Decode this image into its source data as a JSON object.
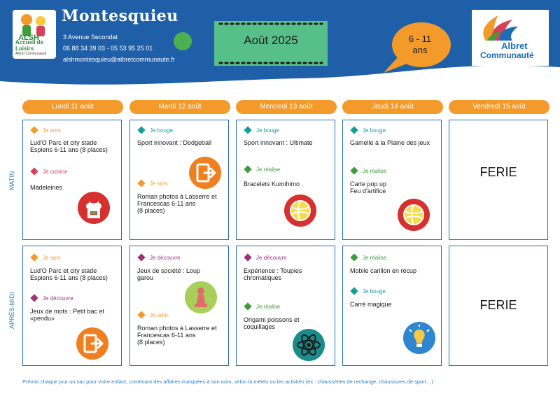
{
  "header": {
    "title": "Montesquieu",
    "address": "3 Avenue Secondat",
    "phones": "06 88 34 39 03  - 05 53 95 25 01",
    "email": "alshmontesquieu@albretcommunaute.fr",
    "month": "Août 2025",
    "age_top": "6 - 11",
    "age_bottom": "ans",
    "alsh_logo": {
      "t1": "Accueil de Loisirs",
      "t2": "Albret Communauté"
    },
    "albret_logo": {
      "l1": "Albret",
      "l2": "Communauté"
    }
  },
  "rows": {
    "matin": "MATIN",
    "apres_midi": "APRÈS-MIDI"
  },
  "days": [
    "Lundi 11 août",
    "Mardi 12 août",
    "Mercredi 13 août",
    "Jeudi 14 août",
    "Vendredi 15 août"
  ],
  "matin": [
    {
      "entries": [
        {
          "cat": "Je sors",
          "color": "#f39a2b",
          "text": [
            "Lud'O Parc et city stade",
            "Espiens 6-11 ans (8 places)"
          ]
        },
        {
          "cat": "Je cuisine",
          "color": "#d6405a",
          "text": [
            "Madeleines"
          ]
        }
      ],
      "icon": "apron-icon"
    },
    {
      "entries": [
        {
          "cat": "Je bouge",
          "color": "#179c9c",
          "text": [
            "Sport innovant : Dodgeball"
          ]
        },
        {
          "cat": "Je sors",
          "color": "#f39a2b",
          "text": [
            "Roman photos à Lasserre et",
            "Francescas 6-11 ans",
            "(8 places)"
          ]
        }
      ],
      "icon": "exit-door-icon"
    },
    {
      "entries": [
        {
          "cat": "Je bouge",
          "color": "#179c9c",
          "text": [
            "Sport innovant : Ultimate"
          ]
        },
        {
          "cat": "Je réalise",
          "color": "#3f9c3a",
          "text": [
            "Bracelets Kumihimo"
          ]
        }
      ],
      "icon": "ball-icon"
    },
    {
      "entries": [
        {
          "cat": "Je bouge",
          "color": "#179c9c",
          "text": [
            "Gamelle à la Plaine des jeux"
          ]
        },
        {
          "cat": "Je réalise",
          "color": "#3f9c3a",
          "text": [
            "Carte pop up",
            "Feu d'artifice"
          ]
        }
      ],
      "icon": "ball-icon"
    },
    {
      "ferie": "FERIE"
    }
  ],
  "apres_midi": [
    {
      "entries": [
        {
          "cat": "Je sors",
          "color": "#f39a2b",
          "text": [
            "Lud'O Parc et city stade",
            "Espiens 6-11 ans (8 places)"
          ]
        },
        {
          "cat": "Je découvre",
          "color": "#a0307a",
          "text": [
            "Jeux de mots : Petit bac et",
            "«pendu»"
          ]
        }
      ],
      "icon": "exit-door-icon"
    },
    {
      "entries": [
        {
          "cat": "Je découvre",
          "color": "#a0307a",
          "text": [
            "Jeux de société : Loup",
            "garou"
          ]
        },
        {
          "cat": "Je sors",
          "color": "#f39a2b",
          "text": [
            "Roman photos à Lasserre et",
            "Francescas 6-11 ans",
            "(8 places)"
          ]
        }
      ],
      "icon": "chess-pawn-icon"
    },
    {
      "entries": [
        {
          "cat": "Je découvre",
          "color": "#a0307a",
          "text": [
            "Expérience : Toupies",
            "chromatiques"
          ]
        },
        {
          "cat": "Je réalise",
          "color": "#3f9c3a",
          "text": [
            "Origami poissons et",
            "coquillages"
          ]
        }
      ],
      "icon": "atom-icon"
    },
    {
      "entries": [
        {
          "cat": "Je réalise",
          "color": "#3f9c3a",
          "text": [
            "Mobile carillon en récup"
          ]
        },
        {
          "cat": "Je bouge",
          "color": "#179c9c",
          "text": [
            "Carré magique"
          ]
        }
      ],
      "icon": "lightbulb-icon"
    },
    {
      "ferie": "FERIE"
    }
  ],
  "footer": "Prévoir chaque jour un sac pour votre enfant, contenant des affaires marquées à son nom, selon la météo ou les activités (ex : chaussettes de rechange, chaussures de sport…)"
}
